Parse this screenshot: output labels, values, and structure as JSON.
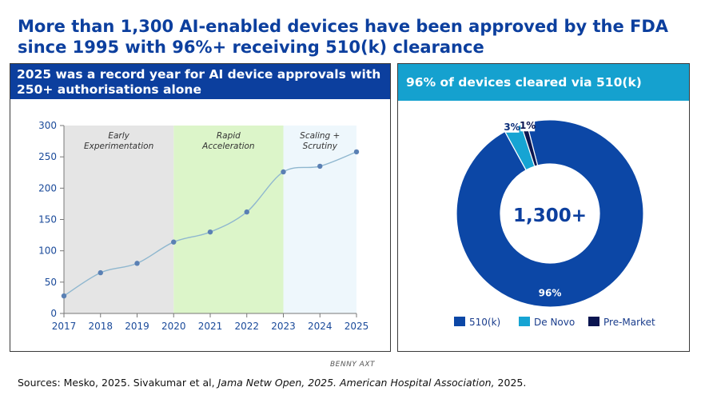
{
  "title": "More than 1,300 AI-enabled devices have been approved by the FDA since 1995 with 96%+ receiving 510(k) clearance",
  "left_panel": {
    "header": "2025 was a record year for AI device approvals with 250+ authorisations alone"
  },
  "right_panel": {
    "header": "96% of devices cleared via 510(k)"
  },
  "credit": "BENNY AXT",
  "sources": {
    "prefix": "Sources: Mesko, 2025. Sivakumar et al, ",
    "journal": "Jama Netw Open, 2025. American Hospital Association,",
    "suffix": " 2025."
  },
  "chart_data": [
    {
      "type": "line",
      "x": [
        "2017",
        "2018",
        "2019",
        "2020",
        "2021",
        "2022",
        "2023",
        "2024",
        "2025"
      ],
      "series": [
        {
          "values": [
            28,
            65,
            80,
            114,
            130,
            162,
            226,
            235,
            258
          ]
        }
      ],
      "ylim": [
        0,
        300
      ],
      "yticks": [
        0,
        50,
        100,
        150,
        200,
        250,
        300
      ],
      "line_color": "#8fb7cf",
      "marker_color": "#5a80b4",
      "grid": false,
      "bands": [
        {
          "label_lines": [
            "Early",
            "Experimentation"
          ],
          "from": "2017",
          "to": "2020",
          "color": "#e5e5e5"
        },
        {
          "label_lines": [
            "Rapid",
            "Acceleration"
          ],
          "from": "2020",
          "to": "2023",
          "color": "#dcf5c9"
        },
        {
          "label_lines": [
            "Scaling +",
            "Scrutiny"
          ],
          "from": "2023",
          "to": "2025",
          "color": "#eef7fc"
        }
      ]
    },
    {
      "type": "pie",
      "donut": true,
      "center_label": "1,300+",
      "slices": [
        {
          "name": "510(k)",
          "value": 96,
          "label": "96%",
          "color": "#0c47a6"
        },
        {
          "name": "De Novo",
          "value": 3,
          "label": "3%",
          "color": "#16a4d3"
        },
        {
          "name": "Pre-Market",
          "value": 1,
          "label": "1%",
          "color": "#0a1550"
        }
      ],
      "legend": "bottom"
    }
  ]
}
